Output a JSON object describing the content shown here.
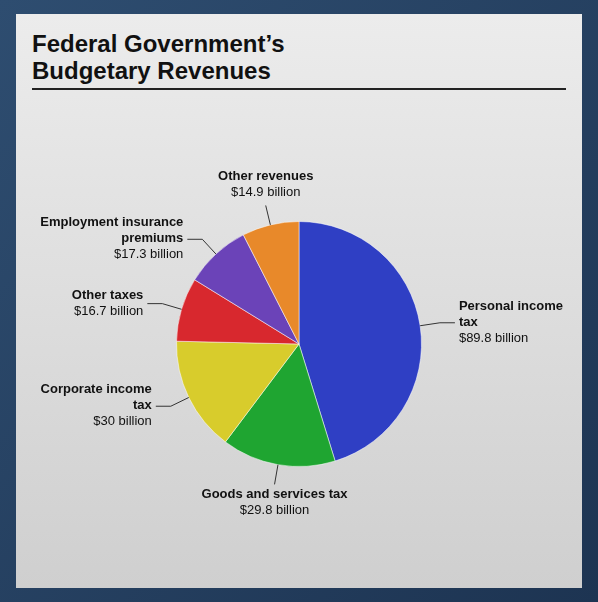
{
  "chart_data": {
    "type": "pie",
    "title": "Federal Government’s Budgetary Revenues",
    "categories": [
      "Personal income tax",
      "Goods and services tax",
      "Corporate income tax",
      "Other taxes",
      "Employment insurance premiums",
      "Other revenues"
    ],
    "values": [
      89.8,
      29.8,
      30,
      16.7,
      17.3,
      14.9
    ],
    "value_labels": [
      "$89.8 billion",
      "$29.8 billion",
      "$30 billion",
      "$16.7 billion",
      "$17.3 billion",
      "$14.9 billion"
    ],
    "colors": [
      "#2f3fc4",
      "#1fa531",
      "#d8cc2c",
      "#d8282e",
      "#6b43b8",
      "#e8892a"
    ],
    "data_labels": true
  }
}
